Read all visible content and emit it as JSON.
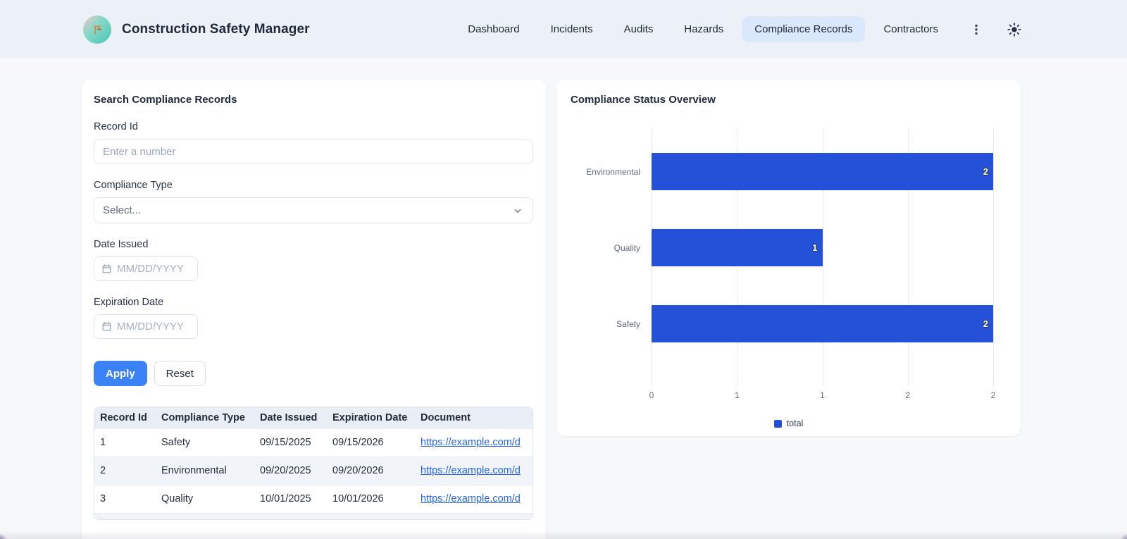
{
  "app": {
    "title": "Construction Safety Manager"
  },
  "nav": {
    "items": [
      {
        "label": "Dashboard",
        "active": false
      },
      {
        "label": "Incidents",
        "active": false
      },
      {
        "label": "Audits",
        "active": false
      },
      {
        "label": "Hazards",
        "active": false
      },
      {
        "label": "Compliance Records",
        "active": true
      },
      {
        "label": "Contractors",
        "active": false
      }
    ]
  },
  "search_panel": {
    "title": "Search Compliance Records",
    "record_id": {
      "label": "Record Id",
      "placeholder": "Enter a number",
      "value": ""
    },
    "compliance_type": {
      "label": "Compliance Type",
      "value": "Select..."
    },
    "date_issued": {
      "label": "Date Issued",
      "placeholder": "MM/DD/YYYY",
      "value": ""
    },
    "expiration_date": {
      "label": "Expiration Date",
      "placeholder": "MM/DD/YYYY",
      "value": ""
    },
    "apply_label": "Apply",
    "reset_label": "Reset"
  },
  "table": {
    "columns": [
      "Record Id",
      "Compliance Type",
      "Date Issued",
      "Expiration Date",
      "Document"
    ],
    "rows": [
      [
        "1",
        "Safety",
        "09/15/2025",
        "09/15/2026",
        "https://example.com/d"
      ],
      [
        "2",
        "Environmental",
        "09/20/2025",
        "09/20/2026",
        "https://example.com/d"
      ],
      [
        "3",
        "Quality",
        "10/01/2025",
        "10/01/2026",
        "https://example.com/d"
      ]
    ],
    "link_column_index": 4
  },
  "chart_data": {
    "type": "bar",
    "orientation": "horizontal",
    "title": "Compliance Status Overview",
    "categories": [
      "Environmental",
      "Quality",
      "Safety"
    ],
    "series": [
      {
        "name": "total",
        "values": [
          2,
          1,
          2
        ]
      }
    ],
    "xlim": [
      0,
      2
    ],
    "x_tick_labels": [
      "0",
      "1",
      "1",
      "2",
      "2"
    ],
    "grid": "vertical",
    "legend_position": "bottom",
    "bar_color": "#2451d8"
  },
  "colors": {
    "accent_blue": "#3b82f6",
    "bar_blue": "#2451d8",
    "link_blue": "#2563eb",
    "active_pill": "#dbe7fb",
    "header_bg": "#ecf1f7"
  }
}
